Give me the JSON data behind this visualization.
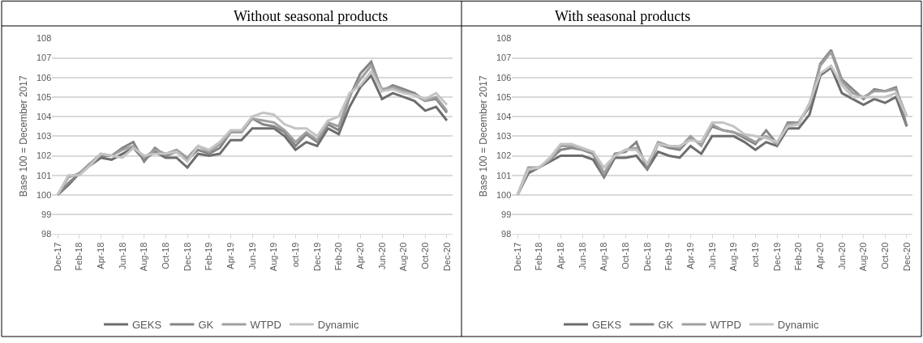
{
  "chart_data": [
    {
      "type": "line",
      "title": "Without seasonal products",
      "ylabel": "Base 100 = December 2017",
      "categories": [
        "Dec-17",
        null,
        "Feb-18",
        null,
        "Apr-18",
        null,
        "Jun-18",
        null,
        "Aug-18",
        null,
        "Oct-18",
        null,
        "Dec-18",
        null,
        "Feb-19",
        null,
        "Apr-19",
        null,
        "Jun-19",
        null,
        "Aug-19",
        null,
        "oct-19",
        null,
        "Dec-19",
        null,
        "Feb-20",
        null,
        "Apr-20",
        null,
        "Jun-20",
        null,
        "Aug-20",
        null,
        "Oct-20",
        null,
        "Dec-20"
      ],
      "series": [
        {
          "name": "GEKS",
          "color": "#6d6d6d",
          "values": [
            100,
            100.5,
            101.1,
            101.5,
            101.9,
            101.8,
            102.1,
            102.4,
            101.8,
            102.2,
            101.9,
            101.9,
            101.4,
            102.1,
            102.0,
            102.1,
            102.8,
            102.8,
            103.4,
            103.4,
            103.4,
            103.0,
            102.3,
            102.7,
            102.5,
            103.4,
            103.1,
            104.5,
            105.5,
            106.1,
            104.9,
            105.2,
            105.0,
            104.8,
            104.3,
            104.5,
            103.8
          ]
        },
        {
          "name": "GK",
          "color": "#858585",
          "values": [
            100,
            100.6,
            101.1,
            101.6,
            102.0,
            102.0,
            102.4,
            102.7,
            101.7,
            102.4,
            102.0,
            102.2,
            101.8,
            102.3,
            102.1,
            102.4,
            103.2,
            103.2,
            103.9,
            103.6,
            103.5,
            103.2,
            102.5,
            103.1,
            102.7,
            103.6,
            103.3,
            105.0,
            106.2,
            106.8,
            105.3,
            105.6,
            105.4,
            105.2,
            104.8,
            104.9,
            104.2
          ]
        },
        {
          "name": "WTPD",
          "color": "#a0a0a0",
          "values": [
            100,
            100.9,
            101.1,
            101.6,
            102.1,
            102.0,
            102.3,
            102.5,
            101.9,
            102.3,
            102.1,
            102.3,
            101.9,
            102.5,
            102.2,
            102.6,
            103.2,
            103.2,
            103.9,
            103.8,
            103.7,
            103.3,
            102.7,
            103.2,
            102.8,
            103.7,
            103.5,
            105.1,
            105.9,
            106.6,
            105.4,
            105.5,
            105.3,
            105.1,
            104.8,
            105.0,
            104.3
          ]
        },
        {
          "name": "Dynamic",
          "color": "#c4c4c4",
          "values": [
            100,
            101.0,
            101.0,
            101.5,
            102.1,
            102.0,
            101.9,
            102.4,
            102.0,
            102.1,
            102.1,
            102.2,
            101.7,
            102.5,
            102.3,
            102.7,
            103.3,
            103.3,
            104.0,
            104.2,
            104.1,
            103.6,
            103.4,
            103.4,
            103.0,
            103.8,
            104.0,
            105.2,
            105.6,
            106.3,
            105.3,
            105.4,
            105.2,
            105.1,
            104.9,
            105.2,
            104.6
          ]
        }
      ],
      "ylim": [
        98,
        108
      ],
      "yticks": [
        98,
        99,
        100,
        101,
        102,
        103,
        104,
        105,
        106,
        107,
        108
      ],
      "grid": "y",
      "legend": "bottom"
    },
    {
      "type": "line",
      "title": "With seasonal products",
      "ylabel": "Base 100 = December 2017",
      "categories": [
        "Dec-17",
        null,
        "Feb-18",
        null,
        "Apr-18",
        null,
        "Jun-18",
        null,
        "Aug-18",
        null,
        "Oct-18",
        null,
        "Dec-18",
        null,
        "Feb-19",
        null,
        "Apr-19",
        null,
        "Jun-19",
        null,
        "Aug-19",
        null,
        "oct-19",
        null,
        "Dec-19",
        null,
        "Feb-20",
        null,
        "Apr-20",
        null,
        "Jun-20",
        null,
        "Aug-20",
        null,
        "Oct-20",
        null,
        "Dec-20"
      ],
      "series": [
        {
          "name": "GEKS",
          "color": "#6d6d6d",
          "values": [
            100,
            101.1,
            101.4,
            101.7,
            102.0,
            102.0,
            102.0,
            101.8,
            100.9,
            101.9,
            101.9,
            102.0,
            101.3,
            102.2,
            102.0,
            101.9,
            102.5,
            102.1,
            103.0,
            103.0,
            103.0,
            102.7,
            102.3,
            102.7,
            102.5,
            103.4,
            103.4,
            104.1,
            106.1,
            106.5,
            105.2,
            104.9,
            104.6,
            104.9,
            104.7,
            105.0,
            103.5
          ]
        },
        {
          "name": "GK",
          "color": "#858585",
          "values": [
            100,
            101.2,
            101.4,
            101.8,
            102.3,
            102.4,
            102.3,
            102.1,
            100.9,
            102.1,
            102.2,
            102.7,
            101.3,
            102.6,
            102.4,
            102.3,
            102.9,
            102.6,
            103.5,
            103.3,
            103.2,
            102.9,
            102.6,
            103.3,
            102.6,
            103.7,
            103.7,
            104.5,
            106.7,
            107.4,
            105.9,
            105.4,
            104.9,
            105.4,
            105.3,
            105.5,
            103.5
          ]
        },
        {
          "name": "WTPD",
          "color": "#a0a0a0",
          "values": [
            100,
            101.4,
            101.4,
            101.8,
            102.5,
            102.5,
            102.3,
            102.2,
            101.1,
            102.0,
            102.3,
            102.4,
            101.5,
            102.7,
            102.5,
            102.4,
            103.0,
            102.5,
            103.6,
            103.3,
            103.2,
            103.0,
            102.7,
            103.0,
            102.6,
            103.6,
            103.7,
            104.6,
            106.6,
            107.3,
            105.8,
            105.2,
            105.0,
            105.3,
            105.3,
            105.4,
            104.0
          ]
        },
        {
          "name": "Dynamic",
          "color": "#c4c4c4",
          "values": [
            100,
            101.3,
            101.4,
            101.9,
            102.6,
            102.6,
            102.4,
            102.2,
            101.4,
            102.0,
            102.3,
            102.3,
            101.6,
            102.6,
            102.5,
            102.5,
            102.8,
            102.7,
            103.7,
            103.7,
            103.5,
            103.1,
            103.0,
            102.9,
            102.7,
            103.5,
            103.6,
            104.7,
            106.2,
            106.6,
            105.6,
            105.0,
            105.0,
            105.0,
            105.0,
            105.2,
            104.0
          ]
        }
      ],
      "ylim": [
        98,
        108
      ],
      "yticks": [
        98,
        99,
        100,
        101,
        102,
        103,
        104,
        105,
        106,
        107,
        108
      ],
      "grid": "y",
      "legend": "bottom"
    }
  ]
}
